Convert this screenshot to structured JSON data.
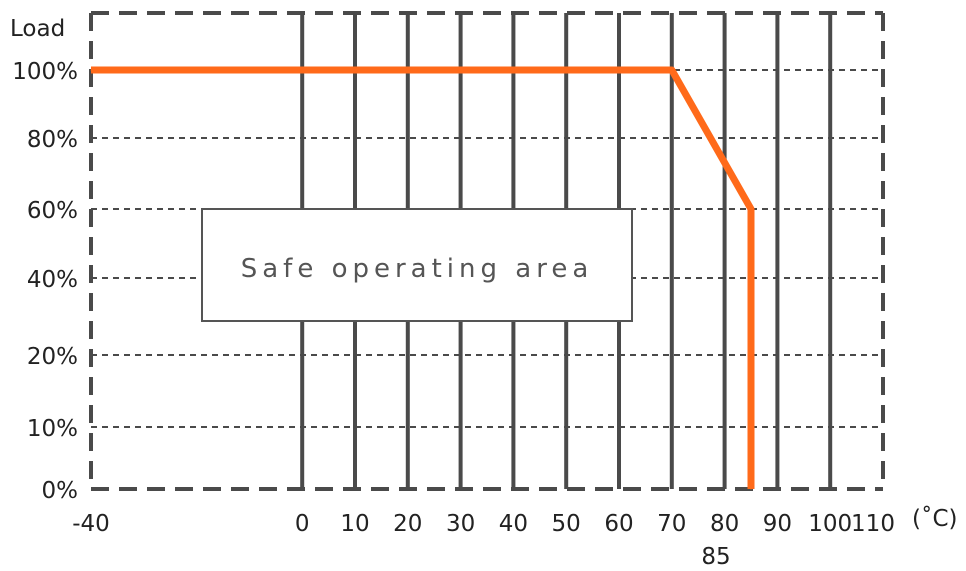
{
  "chart_data": {
    "type": "line",
    "ylabel": "Load",
    "xunit": "(˚C)",
    "x_ticks": [
      "-40",
      "0",
      "10",
      "20",
      "30",
      "40",
      "50",
      "60",
      "70",
      "80",
      "90",
      "100",
      "110"
    ],
    "y_ticks": [
      "0%",
      "10%",
      "20%",
      "40%",
      "60%",
      "80%",
      "100%"
    ],
    "extra_x_label": "85",
    "annotation": "Safe operating area",
    "grid": true,
    "series": [
      {
        "x": [
          -40,
          70,
          85,
          85
        ],
        "y": [
          100,
          100,
          60,
          0
        ],
        "color": "#ff6a1a"
      }
    ],
    "colors": {
      "grid": "#4a4a4a",
      "line": "#ff6a1a",
      "text": "#222222"
    }
  }
}
